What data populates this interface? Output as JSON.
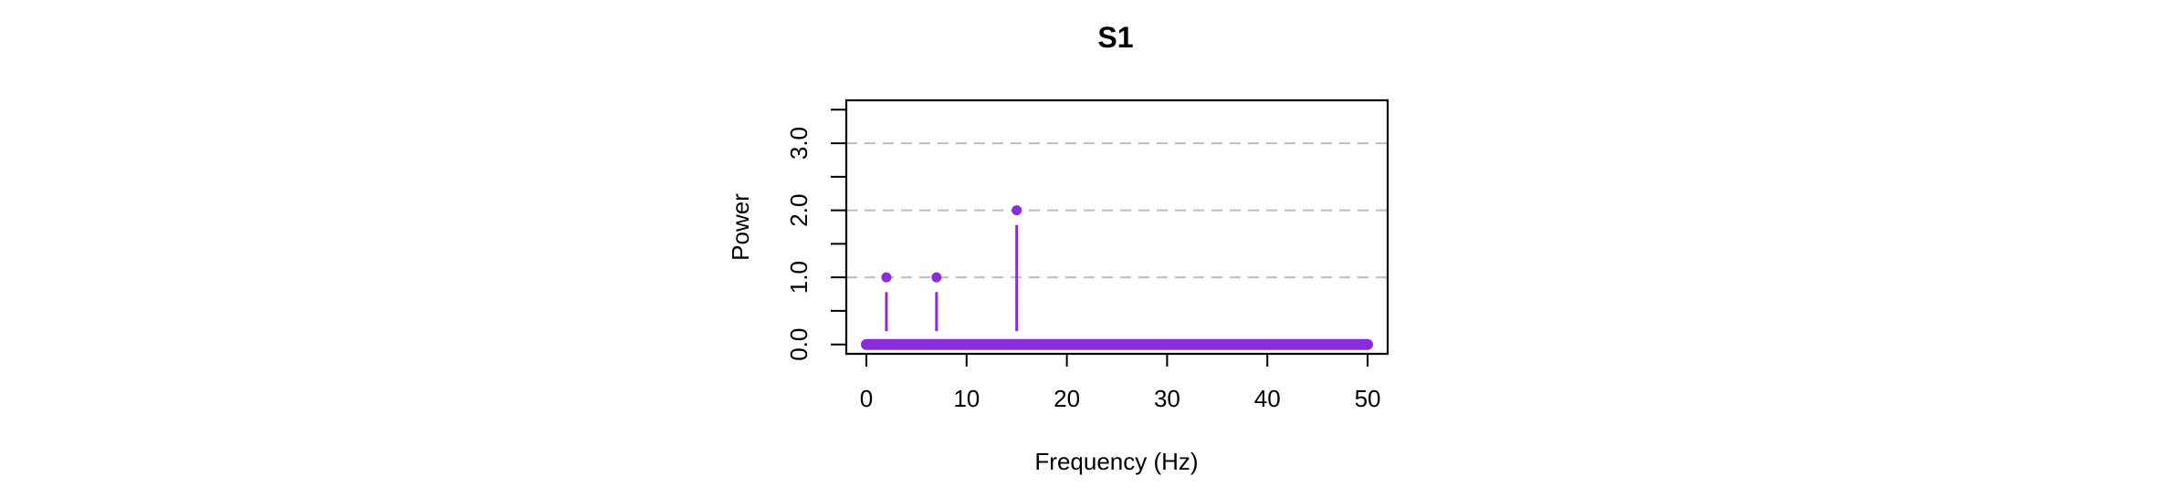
{
  "chart_data": {
    "type": "stem",
    "title": "S1",
    "xlabel": "Frequency (Hz)",
    "ylabel": "Power",
    "xlim": [
      -2,
      52
    ],
    "ylim": [
      -0.14,
      3.64
    ],
    "x_ticks": [
      0,
      10,
      20,
      30,
      40,
      50
    ],
    "x_tick_labels": [
      "0",
      "10",
      "20",
      "30",
      "40",
      "50"
    ],
    "y_ticks": [
      0,
      1,
      2,
      3
    ],
    "y_tick_labels": [
      "0.0",
      "1.0",
      "2.0",
      "3.0"
    ],
    "y_minor_ticks": [
      0.5,
      1.5,
      2.5,
      3.5
    ],
    "gridlines_y": [
      1,
      2,
      3
    ],
    "grid": "horizontal dashed",
    "baseline": {
      "x_from": 0,
      "x_to": 50,
      "y": 0
    },
    "peaks": [
      {
        "x": 2,
        "y": 1
      },
      {
        "x": 7,
        "y": 1
      },
      {
        "x": 15,
        "y": 2
      }
    ],
    "colors": {
      "series": "#8a2be2",
      "grid": "#bdbdbd",
      "axes": "#000000"
    }
  }
}
